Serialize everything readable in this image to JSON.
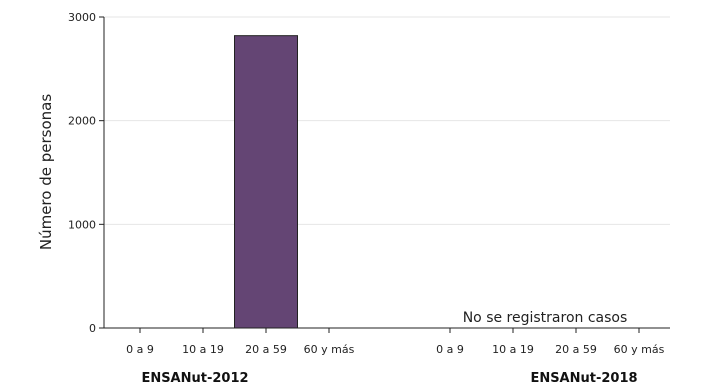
{
  "chart_data": {
    "type": "bar",
    "ylabel": "Número de personas",
    "ylim": [
      0,
      3000
    ],
    "yticks": [
      0,
      1000,
      2000,
      3000
    ],
    "grid": true,
    "bar_color": "#644574",
    "groups": [
      {
        "name": "ENSANut-2012",
        "categories": [
          "0 a 9",
          "10 a 19",
          "20 a 59",
          "60 y más"
        ],
        "values": [
          0,
          0,
          2820,
          0
        ]
      },
      {
        "name": "ENSANut-2018",
        "categories": [
          "0 a 9",
          "10 a 19",
          "20 a 59",
          "60 y más"
        ],
        "values": [
          0,
          0,
          0,
          0
        ],
        "annotation": "No se registraron casos"
      }
    ]
  }
}
